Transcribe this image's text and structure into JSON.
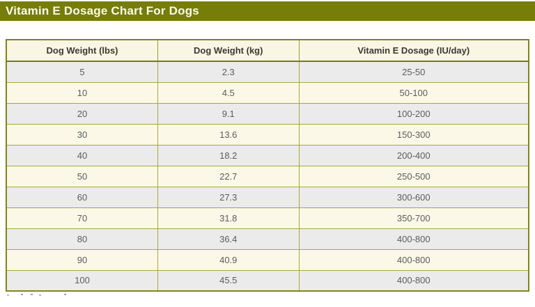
{
  "title": "Vitamin E Dosage Chart For Dogs",
  "colors": {
    "title_bar_bg": "#767d08",
    "title_text": "#fbfaee",
    "outer_border": "#80851a",
    "inner_border": "#a4aa38",
    "header_bg": "#faf6e4",
    "row_odd_bg": "#ebebeb",
    "row_even_bg": "#fbf8e8",
    "header_text": "#3a3a30",
    "cell_text": "#5c5c5c"
  },
  "chart_data": {
    "type": "table",
    "title": "Vitamin E Dosage Chart For Dogs",
    "columns": [
      "Dog Weight (lbs)",
      "Dog Weight (kg)",
      "Vitamin E Dosage (IU/day)"
    ],
    "rows": [
      [
        "5",
        "2.3",
        "25-50"
      ],
      [
        "10",
        "4.5",
        "50-100"
      ],
      [
        "20",
        "9.1",
        "100-200"
      ],
      [
        "30",
        "13.6",
        "150-300"
      ],
      [
        "40",
        "18.2",
        "200-400"
      ],
      [
        "50",
        "22.7",
        "250-500"
      ],
      [
        "60",
        "27.3",
        "300-600"
      ],
      [
        "70",
        "31.8",
        "350-700"
      ],
      [
        "80",
        "36.4",
        "400-800"
      ],
      [
        "90",
        "40.9",
        "400-800"
      ],
      [
        "100",
        "45.5",
        "400-800"
      ]
    ]
  }
}
